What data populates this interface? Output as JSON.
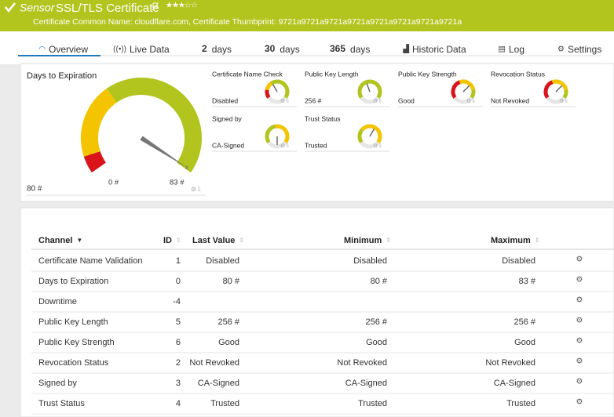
{
  "header": {
    "prefix": "Sensor",
    "title": "SSL/TLS Certificate",
    "subtitle": "Certificate Common Name: cloudflare.com, Certificate Thumbprint: 9721a9721a9721a9721a9721a9721a9721a9721a"
  },
  "tabs": [
    {
      "label": "Overview"
    },
    {
      "label": "Live Data"
    },
    {
      "number": "2",
      "label": "days"
    },
    {
      "number": "30",
      "label": "days"
    },
    {
      "number": "365",
      "label": "days"
    },
    {
      "label": "Historic Data"
    },
    {
      "label": "Log"
    },
    {
      "label": "Settings"
    }
  ],
  "overview": {
    "main_gauge": {
      "title": "Days to Expiration",
      "value": "80 #",
      "min": "0 #",
      "max": "83 #"
    },
    "small_gauges": [
      {
        "title": "Certificate Name Check",
        "value": "Disabled"
      },
      {
        "title": "Public Key Length",
        "value": "256 #"
      },
      {
        "title": "Public Key Strength",
        "value": "Good"
      },
      {
        "title": "Revocation Status",
        "value": "Not Revoked"
      },
      {
        "title": "Signed by",
        "value": "CA-Signed"
      },
      {
        "title": "Trust Status",
        "value": "Trusted"
      }
    ]
  },
  "table": {
    "columns": [
      "Channel",
      "ID",
      "Last Value",
      "Minimum",
      "Maximum"
    ],
    "rows": [
      [
        "Certificate Name Validation",
        1,
        "Disabled",
        "Disabled",
        "Disabled"
      ],
      [
        "Days to Expiration",
        0,
        "80 #",
        "80 #",
        "83 #"
      ],
      [
        "Downtime",
        -4,
        null,
        null,
        null
      ],
      [
        "Public Key Length",
        5,
        "256 #",
        "256 #",
        "256 #"
      ],
      [
        "Public Key Strength",
        6,
        "Good",
        "Good",
        "Good"
      ],
      [
        "Revocation Status",
        2,
        "Not Revoked",
        "Not Revoked",
        "Not Revoked"
      ],
      [
        "Signed by",
        3,
        "CA-Signed",
        "CA-Signed",
        "CA-Signed"
      ],
      [
        "Trust Status",
        4,
        "Trusted",
        "Trusted",
        "Trusted"
      ]
    ]
  }
}
